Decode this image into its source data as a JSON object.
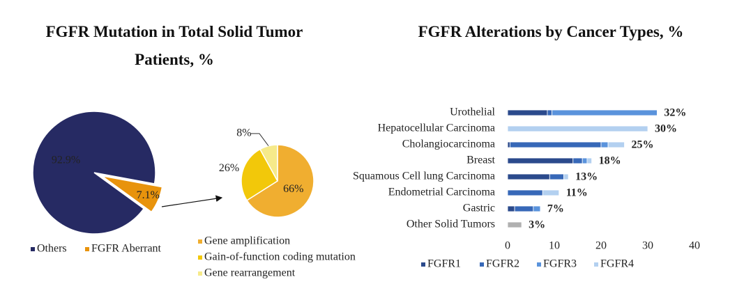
{
  "chart_data": [
    {
      "type": "pie",
      "title": "FGFR Mutation in Total Solid Tumor Patients, %",
      "categories": [
        "Others",
        "FGFR Aberrant"
      ],
      "values": [
        92.9,
        7.1
      ],
      "value_labels": [
        "92.9%",
        "7.1%"
      ],
      "colors": [
        "#262a63",
        "#e8930c"
      ]
    },
    {
      "type": "pie",
      "categories": [
        "Gene amplification",
        "Gain-of-function coding mutation",
        "Gene rearrangement"
      ],
      "values": [
        66,
        26,
        8
      ],
      "value_labels": [
        "66%",
        "26%",
        "8%"
      ],
      "colors": [
        "#f0ae30",
        "#f2c80a",
        "#f6ea8a"
      ]
    },
    {
      "type": "bar",
      "title": "FGFR Alterations by Cancer Types, %",
      "orientation": "horizontal",
      "stacked": true,
      "categories": [
        "Urothelial",
        "Hepatocellular Carcinoma",
        "Cholangiocarcinoma",
        "Breast",
        "Squamous Cell lung Carcinoma",
        "Endometrial  Carcinoma",
        "Gastric",
        "Other Solid Tumors"
      ],
      "series": [
        {
          "name": "FGFR1",
          "color": "#2b4a8c",
          "values": [
            8.5,
            null,
            0.5,
            14,
            9,
            null,
            1.5,
            null
          ]
        },
        {
          "name": "FGFR2",
          "color": "#3768b8",
          "values": [
            1,
            null,
            19.5,
            2,
            3,
            7.5,
            4,
            null
          ]
        },
        {
          "name": "FGFR3",
          "color": "#5a93dc",
          "values": [
            22.5,
            null,
            1.5,
            1,
            null,
            null,
            1.5,
            null
          ]
        },
        {
          "name": "FGFR4",
          "color": "#b3d0f0",
          "values": [
            null,
            30,
            3.5,
            1,
            1,
            3.5,
            null,
            null
          ]
        },
        {
          "color": "#b0b0b0",
          "values": [
            null,
            null,
            null,
            null,
            null,
            null,
            null,
            3
          ]
        }
      ],
      "totals": [
        32,
        30,
        25,
        18,
        13,
        11,
        7,
        3
      ],
      "total_labels": [
        "32%",
        "30%",
        "25%",
        "18%",
        "13%",
        "11%",
        "7%",
        "3%"
      ],
      "xlim": [
        0,
        40
      ],
      "xticks": [
        0,
        10,
        20,
        30,
        40
      ],
      "grid": false
    }
  ]
}
